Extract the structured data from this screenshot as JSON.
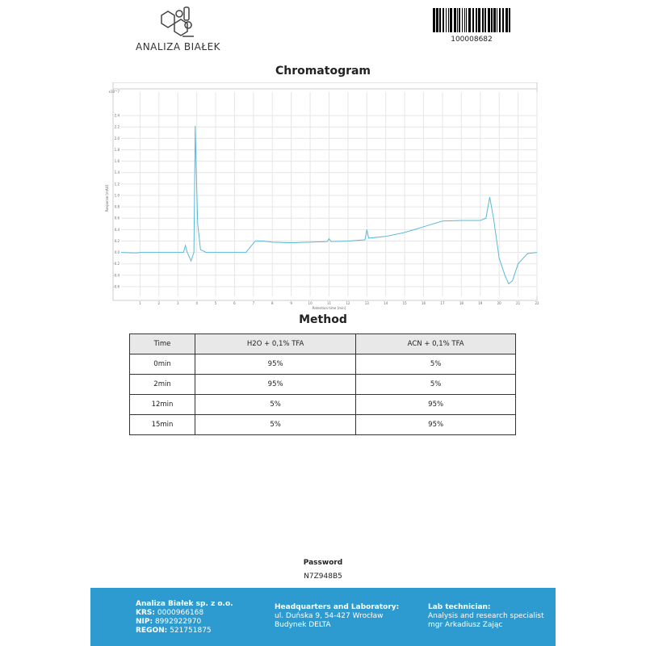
{
  "header": {
    "logo_text": "ANALIZA BIAŁEK",
    "barcode_number": "100008682"
  },
  "chart_title": "Chromatogram",
  "chart_data": {
    "type": "line",
    "xlabel": "Retention time [min]",
    "ylabel": "Response [mAU]",
    "y_multiplier": "x10^7",
    "xlim": [
      0,
      22
    ],
    "ylim": [
      -0.7,
      2.6
    ],
    "xticks": [
      1,
      2,
      3,
      4,
      5,
      6,
      7,
      8,
      9,
      10,
      11,
      12,
      13,
      14,
      15,
      16,
      17,
      18,
      19,
      20,
      21,
      22
    ],
    "yticks": [
      "-0.6",
      "-0.4",
      "-0.2",
      "0.0",
      "0.2",
      "0.4",
      "0.6",
      "0.8",
      "1.0",
      "1.2",
      "1.4",
      "1.6",
      "1.8",
      "2.0",
      "2.2",
      "2.4"
    ],
    "grid": true,
    "color": "#5bb8d8",
    "x": [
      0,
      0.8,
      1,
      3.3,
      3.4,
      3.5,
      3.7,
      3.85,
      3.92,
      3.97,
      4.05,
      4.2,
      4.5,
      6.6,
      7.1,
      7.5,
      8,
      9,
      10,
      10.9,
      11,
      11.1,
      12,
      12.9,
      13,
      13.1,
      14,
      15,
      16,
      17,
      18,
      19,
      19.3,
      19.5,
      19.7,
      20,
      20.3,
      20.5,
      20.7,
      21,
      21.5,
      22
    ],
    "y": [
      0,
      -0.01,
      0,
      0,
      0.12,
      0,
      -0.15,
      0,
      2.22,
      1.5,
      0.5,
      0.05,
      0,
      0,
      0.2,
      0.2,
      0.18,
      0.17,
      0.18,
      0.19,
      0.24,
      0.19,
      0.2,
      0.22,
      0.4,
      0.25,
      0.28,
      0.35,
      0.45,
      0.55,
      0.56,
      0.56,
      0.6,
      0.97,
      0.6,
      -0.1,
      -0.4,
      -0.55,
      -0.5,
      -0.2,
      -0.02,
      0
    ]
  },
  "method": {
    "title": "Method",
    "headers": [
      "Time",
      "H2O + 0,1% TFA",
      "ACN + 0,1% TFA"
    ],
    "rows": [
      [
        "0min",
        "95%",
        "5%"
      ],
      [
        "2min",
        "95%",
        "5%"
      ],
      [
        "12min",
        "5%",
        "95%"
      ],
      [
        "15min",
        "5%",
        "95%"
      ]
    ]
  },
  "password": {
    "label": "Password",
    "value": "N7Z948B5"
  },
  "footer": {
    "company": "Analiza Białek sp. z o.o.",
    "krs_label": "KRS:",
    "krs": "0000966168",
    "nip_label": "NIP:",
    "nip": "8992922970",
    "regon_label": "REGON:",
    "regon": "521751875",
    "hq_title": "Headquarters and Laboratory:",
    "hq_line1": "ul. Duńska 9, 54-427 Wrocław",
    "hq_line2": "Budynek DELTA",
    "tech_title": "Lab technician:",
    "tech_line1": "Analysis and research specialist",
    "tech_line2": "mgr Arkadiusz Zając"
  }
}
